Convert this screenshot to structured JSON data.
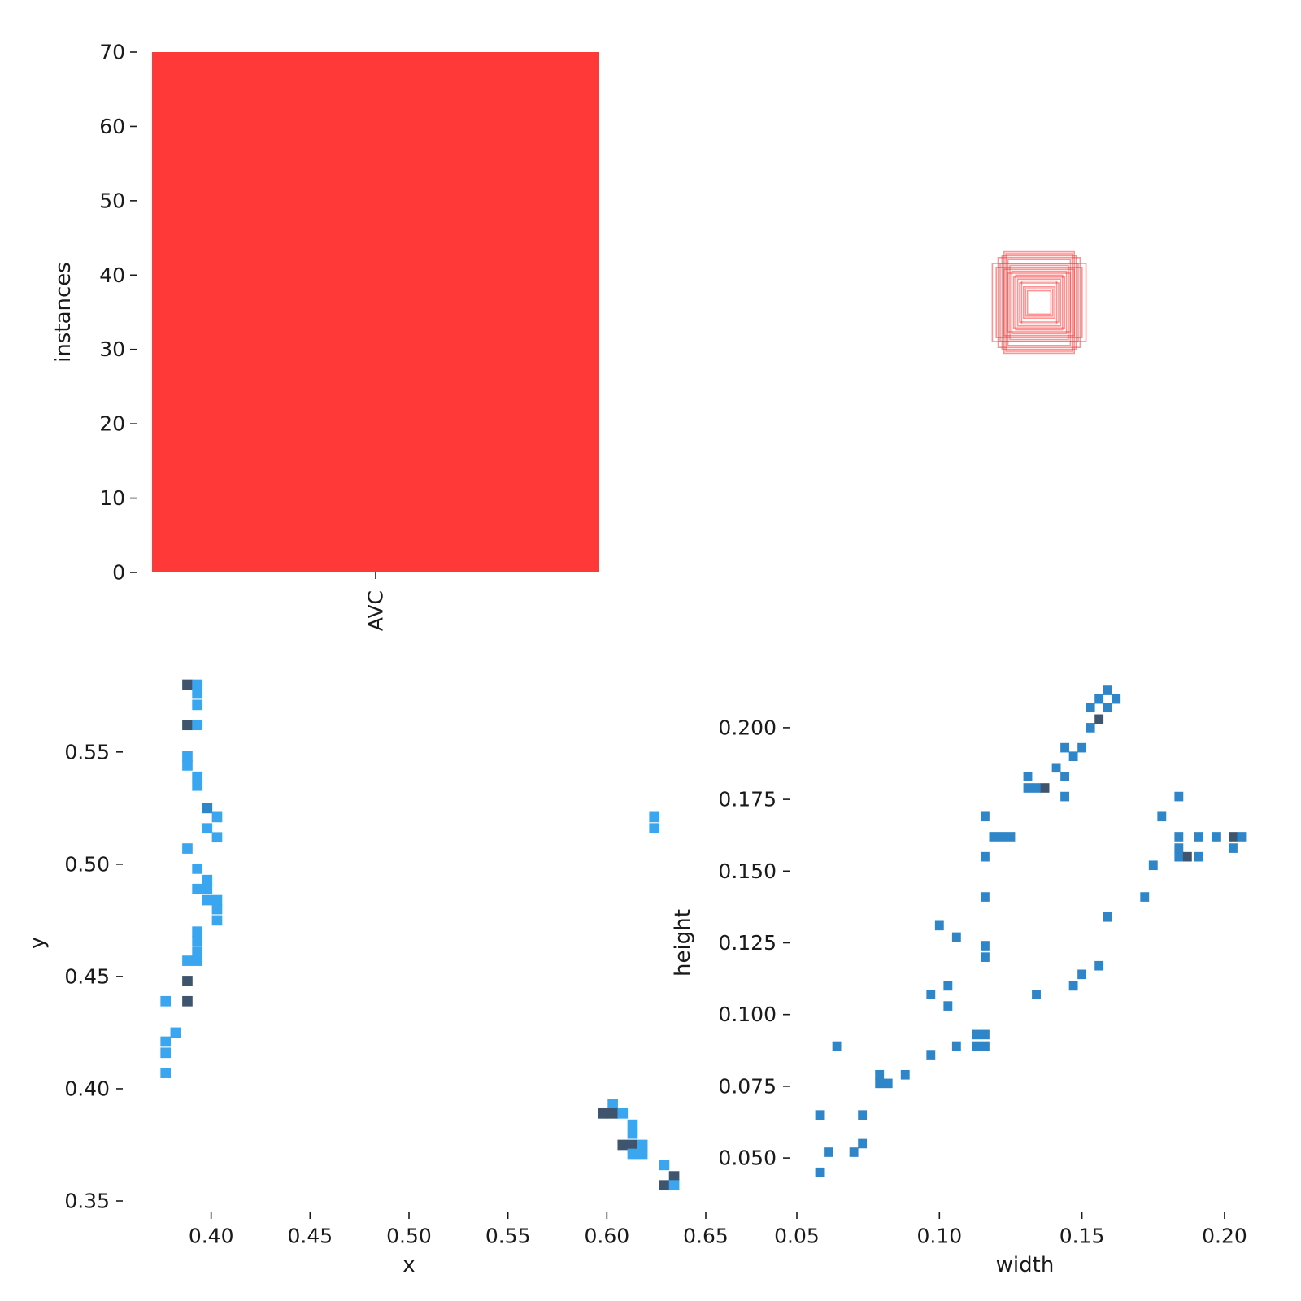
{
  "chart_data": [
    {
      "type": "bar",
      "categories": [
        "AVC"
      ],
      "values": [
        70
      ],
      "ylabel": "instances",
      "xlabel": "",
      "ylim": [
        0,
        70
      ],
      "yticks": [
        0,
        10,
        20,
        30,
        40,
        50,
        60,
        70
      ],
      "color": "#ff3838"
    },
    {
      "type": "boxes",
      "note_visible": "overlaid bounding box outlines centered in an unlabeled panel",
      "color": "#ff3838",
      "boxes": [
        {
          "w": 0.18,
          "h": 0.26
        },
        {
          "w": 0.16,
          "h": 0.22
        },
        {
          "w": 0.2,
          "h": 0.2
        },
        {
          "w": 0.24,
          "h": 0.2
        },
        {
          "w": 0.19,
          "h": 0.24
        },
        {
          "w": 0.14,
          "h": 0.16
        },
        {
          "w": 0.12,
          "h": 0.14
        },
        {
          "w": 0.1,
          "h": 0.1
        },
        {
          "w": 0.08,
          "h": 0.08
        },
        {
          "w": 0.06,
          "h": 0.06
        },
        {
          "w": 0.22,
          "h": 0.18
        },
        {
          "w": 0.17,
          "h": 0.25
        },
        {
          "w": 0.15,
          "h": 0.19
        },
        {
          "w": 0.13,
          "h": 0.13
        },
        {
          "w": 0.21,
          "h": 0.23
        },
        {
          "w": 0.11,
          "h": 0.12
        },
        {
          "w": 0.09,
          "h": 0.11
        },
        {
          "w": 0.07,
          "h": 0.07
        },
        {
          "w": 0.18,
          "h": 0.17
        },
        {
          "w": 0.16,
          "h": 0.15
        }
      ]
    },
    {
      "type": "heatmap",
      "xlabel": "x",
      "ylabel": "y",
      "xlim": [
        0.35,
        0.65
      ],
      "ylim": [
        0.35,
        0.58
      ],
      "xticks": [
        "0.40",
        "0.45",
        "0.50",
        "0.55",
        "0.60",
        "0.65"
      ],
      "yticks": [
        "0.35",
        "0.40",
        "0.45",
        "0.50",
        "0.55"
      ],
      "cell": {
        "dx": 0.0052,
        "dy": 0.0046
      },
      "colors": {
        "low": "#3aa6f0",
        "mid": "#2e86c8",
        "high": "#3f556e"
      },
      "cells": [
        {
          "x": 0.388,
          "y": 0.58,
          "v": 3
        },
        {
          "x": 0.393,
          "y": 0.58,
          "v": 1
        },
        {
          "x": 0.393,
          "y": 0.576,
          "v": 1
        },
        {
          "x": 0.393,
          "y": 0.571,
          "v": 1
        },
        {
          "x": 0.388,
          "y": 0.562,
          "v": 3
        },
        {
          "x": 0.393,
          "y": 0.562,
          "v": 1
        },
        {
          "x": 0.388,
          "y": 0.548,
          "v": 1
        },
        {
          "x": 0.388,
          "y": 0.544,
          "v": 1
        },
        {
          "x": 0.393,
          "y": 0.539,
          "v": 1
        },
        {
          "x": 0.393,
          "y": 0.535,
          "v": 1
        },
        {
          "x": 0.398,
          "y": 0.525,
          "v": 2
        },
        {
          "x": 0.403,
          "y": 0.521,
          "v": 1
        },
        {
          "x": 0.398,
          "y": 0.516,
          "v": 1
        },
        {
          "x": 0.403,
          "y": 0.512,
          "v": 1
        },
        {
          "x": 0.388,
          "y": 0.507,
          "v": 1
        },
        {
          "x": 0.393,
          "y": 0.498,
          "v": 1
        },
        {
          "x": 0.398,
          "y": 0.493,
          "v": 1
        },
        {
          "x": 0.393,
          "y": 0.489,
          "v": 1
        },
        {
          "x": 0.398,
          "y": 0.489,
          "v": 1
        },
        {
          "x": 0.398,
          "y": 0.484,
          "v": 1
        },
        {
          "x": 0.403,
          "y": 0.484,
          "v": 1
        },
        {
          "x": 0.403,
          "y": 0.48,
          "v": 1
        },
        {
          "x": 0.403,
          "y": 0.475,
          "v": 1
        },
        {
          "x": 0.393,
          "y": 0.47,
          "v": 1
        },
        {
          "x": 0.393,
          "y": 0.466,
          "v": 1
        },
        {
          "x": 0.393,
          "y": 0.461,
          "v": 1
        },
        {
          "x": 0.388,
          "y": 0.457,
          "v": 1
        },
        {
          "x": 0.393,
          "y": 0.457,
          "v": 1
        },
        {
          "x": 0.388,
          "y": 0.448,
          "v": 3
        },
        {
          "x": 0.388,
          "y": 0.439,
          "v": 3
        },
        {
          "x": 0.377,
          "y": 0.439,
          "v": 1
        },
        {
          "x": 0.382,
          "y": 0.425,
          "v": 1
        },
        {
          "x": 0.377,
          "y": 0.421,
          "v": 1
        },
        {
          "x": 0.377,
          "y": 0.416,
          "v": 1
        },
        {
          "x": 0.377,
          "y": 0.407,
          "v": 1
        },
        {
          "x": 0.624,
          "y": 0.521,
          "v": 1
        },
        {
          "x": 0.624,
          "y": 0.516,
          "v": 1
        },
        {
          "x": 0.603,
          "y": 0.393,
          "v": 1
        },
        {
          "x": 0.598,
          "y": 0.389,
          "v": 3
        },
        {
          "x": 0.603,
          "y": 0.389,
          "v": 3
        },
        {
          "x": 0.608,
          "y": 0.389,
          "v": 1
        },
        {
          "x": 0.613,
          "y": 0.384,
          "v": 1
        },
        {
          "x": 0.613,
          "y": 0.38,
          "v": 1
        },
        {
          "x": 0.608,
          "y": 0.375,
          "v": 3
        },
        {
          "x": 0.613,
          "y": 0.375,
          "v": 3
        },
        {
          "x": 0.618,
          "y": 0.375,
          "v": 1
        },
        {
          "x": 0.613,
          "y": 0.371,
          "v": 1
        },
        {
          "x": 0.618,
          "y": 0.371,
          "v": 1
        },
        {
          "x": 0.629,
          "y": 0.366,
          "v": 1
        },
        {
          "x": 0.634,
          "y": 0.361,
          "v": 3
        },
        {
          "x": 0.629,
          "y": 0.357,
          "v": 3
        },
        {
          "x": 0.634,
          "y": 0.357,
          "v": 1
        }
      ]
    },
    {
      "type": "heatmap",
      "xlabel": "width",
      "ylabel": "height",
      "xlim": [
        0.05,
        0.21
      ],
      "ylim": [
        0.035,
        0.215
      ],
      "xticks": [
        "0.05",
        "0.10",
        "0.15",
        "0.20"
      ],
      "yticks": [
        "0.050",
        "0.075",
        "0.100",
        "0.125",
        "0.150",
        "0.175",
        "0.200"
      ],
      "cell": {
        "dx": 0.0031,
        "dy": 0.0033
      },
      "colors": {
        "low": "#3aa6f0",
        "mid": "#2e86c8",
        "high": "#3f556e"
      },
      "cells": [
        {
          "x": 0.159,
          "y": 0.213,
          "v": 2
        },
        {
          "x": 0.156,
          "y": 0.21,
          "v": 2
        },
        {
          "x": 0.162,
          "y": 0.21,
          "v": 2
        },
        {
          "x": 0.153,
          "y": 0.207,
          "v": 2
        },
        {
          "x": 0.159,
          "y": 0.207,
          "v": 2
        },
        {
          "x": 0.156,
          "y": 0.203,
          "v": 3
        },
        {
          "x": 0.153,
          "y": 0.2,
          "v": 2
        },
        {
          "x": 0.144,
          "y": 0.193,
          "v": 2
        },
        {
          "x": 0.15,
          "y": 0.193,
          "v": 2
        },
        {
          "x": 0.147,
          "y": 0.19,
          "v": 2
        },
        {
          "x": 0.141,
          "y": 0.186,
          "v": 2
        },
        {
          "x": 0.131,
          "y": 0.183,
          "v": 2
        },
        {
          "x": 0.144,
          "y": 0.183,
          "v": 2
        },
        {
          "x": 0.131,
          "y": 0.179,
          "v": 2
        },
        {
          "x": 0.134,
          "y": 0.179,
          "v": 2
        },
        {
          "x": 0.137,
          "y": 0.179,
          "v": 3
        },
        {
          "x": 0.144,
          "y": 0.176,
          "v": 2
        },
        {
          "x": 0.184,
          "y": 0.176,
          "v": 2
        },
        {
          "x": 0.116,
          "y": 0.169,
          "v": 2
        },
        {
          "x": 0.178,
          "y": 0.169,
          "v": 2
        },
        {
          "x": 0.119,
          "y": 0.162,
          "v": 2
        },
        {
          "x": 0.122,
          "y": 0.162,
          "v": 2
        },
        {
          "x": 0.125,
          "y": 0.162,
          "v": 2
        },
        {
          "x": 0.184,
          "y": 0.162,
          "v": 2
        },
        {
          "x": 0.191,
          "y": 0.162,
          "v": 2
        },
        {
          "x": 0.197,
          "y": 0.162,
          "v": 2
        },
        {
          "x": 0.203,
          "y": 0.162,
          "v": 3
        },
        {
          "x": 0.206,
          "y": 0.162,
          "v": 2
        },
        {
          "x": 0.184,
          "y": 0.158,
          "v": 2
        },
        {
          "x": 0.203,
          "y": 0.158,
          "v": 2
        },
        {
          "x": 0.116,
          "y": 0.155,
          "v": 2
        },
        {
          "x": 0.184,
          "y": 0.155,
          "v": 2
        },
        {
          "x": 0.187,
          "y": 0.155,
          "v": 3
        },
        {
          "x": 0.191,
          "y": 0.155,
          "v": 2
        },
        {
          "x": 0.175,
          "y": 0.152,
          "v": 2
        },
        {
          "x": 0.116,
          "y": 0.141,
          "v": 2
        },
        {
          "x": 0.172,
          "y": 0.141,
          "v": 2
        },
        {
          "x": 0.159,
          "y": 0.134,
          "v": 2
        },
        {
          "x": 0.1,
          "y": 0.131,
          "v": 2
        },
        {
          "x": 0.106,
          "y": 0.127,
          "v": 2
        },
        {
          "x": 0.116,
          "y": 0.124,
          "v": 2
        },
        {
          "x": 0.116,
          "y": 0.12,
          "v": 2
        },
        {
          "x": 0.156,
          "y": 0.117,
          "v": 2
        },
        {
          "x": 0.15,
          "y": 0.114,
          "v": 2
        },
        {
          "x": 0.103,
          "y": 0.11,
          "v": 2
        },
        {
          "x": 0.147,
          "y": 0.11,
          "v": 2
        },
        {
          "x": 0.097,
          "y": 0.107,
          "v": 2
        },
        {
          "x": 0.134,
          "y": 0.107,
          "v": 2
        },
        {
          "x": 0.103,
          "y": 0.103,
          "v": 2
        },
        {
          "x": 0.113,
          "y": 0.093,
          "v": 2
        },
        {
          "x": 0.116,
          "y": 0.093,
          "v": 2
        },
        {
          "x": 0.064,
          "y": 0.089,
          "v": 2
        },
        {
          "x": 0.106,
          "y": 0.089,
          "v": 2
        },
        {
          "x": 0.113,
          "y": 0.089,
          "v": 2
        },
        {
          "x": 0.116,
          "y": 0.089,
          "v": 2
        },
        {
          "x": 0.097,
          "y": 0.086,
          "v": 2
        },
        {
          "x": 0.079,
          "y": 0.079,
          "v": 2
        },
        {
          "x": 0.088,
          "y": 0.079,
          "v": 2
        },
        {
          "x": 0.079,
          "y": 0.076,
          "v": 2
        },
        {
          "x": 0.082,
          "y": 0.076,
          "v": 2
        },
        {
          "x": 0.058,
          "y": 0.065,
          "v": 2
        },
        {
          "x": 0.073,
          "y": 0.065,
          "v": 2
        },
        {
          "x": 0.073,
          "y": 0.055,
          "v": 2
        },
        {
          "x": 0.061,
          "y": 0.052,
          "v": 2
        },
        {
          "x": 0.07,
          "y": 0.052,
          "v": 2
        },
        {
          "x": 0.058,
          "y": 0.045,
          "v": 2
        }
      ]
    }
  ]
}
